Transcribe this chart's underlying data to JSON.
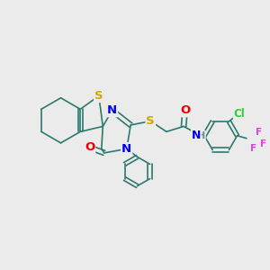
{
  "background_color": "#ebebeb",
  "atom_colors": {
    "S": "#ccaa00",
    "N": "#0000ee",
    "O": "#ee0000",
    "C": "#2d7a6e",
    "H": "#6a9090",
    "F": "#dd44dd",
    "Cl": "#33cc33"
  },
  "bond_color": "#2d7a6e",
  "font_size": 8.5,
  "lw": 1.2
}
